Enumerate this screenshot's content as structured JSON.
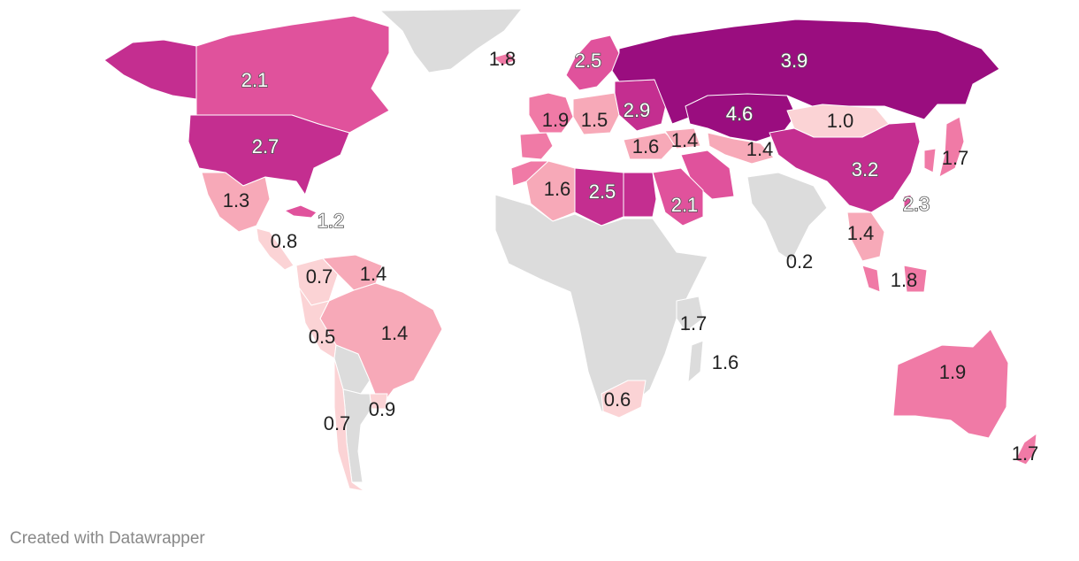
{
  "credit": "Created with Datawrapper",
  "colors": {
    "no_data": "#dcdcdc",
    "scale": [
      "#fbd3d5",
      "#f7a9b8",
      "#f07aa6",
      "#e0529c",
      "#c42e90",
      "#9a0d7f"
    ]
  },
  "regions": [
    {
      "name": "Canada",
      "value": "2.1",
      "level": 3
    },
    {
      "name": "USA",
      "value": "2.7",
      "level": 4
    },
    {
      "name": "Alaska",
      "value": "",
      "level": 4
    },
    {
      "name": "Greenland",
      "value": "",
      "level": -1
    },
    {
      "name": "Mexico",
      "value": "1.3",
      "level": 1
    },
    {
      "name": "Central America",
      "value": "0.8",
      "level": 0
    },
    {
      "name": "Cuba",
      "value": "1.2",
      "level": 3
    },
    {
      "name": "Colombia",
      "value": "0.7",
      "level": 0
    },
    {
      "name": "Venezuela",
      "value": "1.4",
      "level": 1
    },
    {
      "name": "Brazil",
      "value": "1.4",
      "level": 1
    },
    {
      "name": "Peru",
      "value": "0.5",
      "level": 0
    },
    {
      "name": "Bolivia/Paraguay",
      "value": "",
      "level": -1
    },
    {
      "name": "Uruguay",
      "value": "0.9",
      "level": 0
    },
    {
      "name": "Argentina",
      "value": "",
      "level": -1
    },
    {
      "name": "Chile",
      "value": "0.7",
      "level": 0
    },
    {
      "name": "Iceland",
      "value": "1.8",
      "level": 2
    },
    {
      "name": "Scandinavia",
      "value": "2.5",
      "level": 3
    },
    {
      "name": "Western Europe",
      "value": "1.9",
      "level": 2
    },
    {
      "name": "Iberia",
      "value": "",
      "level": 2
    },
    {
      "name": "Central Europe",
      "value": "1.5",
      "level": 1
    },
    {
      "name": "Eastern Europe",
      "value": "2.9",
      "level": 4
    },
    {
      "name": "Turkey",
      "value": "1.6",
      "level": 1
    },
    {
      "name": "Caucasus",
      "value": "1.4",
      "level": 1
    },
    {
      "name": "Russia",
      "value": "3.9",
      "level": 5
    },
    {
      "name": "Kazakhstan",
      "value": "4.6",
      "level": 5
    },
    {
      "name": "Central Asia",
      "value": "1.4",
      "level": 1
    },
    {
      "name": "Mongolia",
      "value": "1.0",
      "level": 0
    },
    {
      "name": "China",
      "value": "3.2",
      "level": 4
    },
    {
      "name": "Korea/Japan",
      "value": "1.7",
      "level": 2
    },
    {
      "name": "Taiwan",
      "value": "2.3",
      "level": 3
    },
    {
      "name": "Vietnam/Thailand",
      "value": "1.4",
      "level": 1
    },
    {
      "name": "Malaysia/Indonesia",
      "value": "1.8",
      "level": 2
    },
    {
      "name": "Iran",
      "value": "",
      "level": 3
    },
    {
      "name": "Saudi Arabia",
      "value": "2.1",
      "level": 3
    },
    {
      "name": "Egypt",
      "value": "",
      "level": 4
    },
    {
      "name": "Libya",
      "value": "2.5",
      "level": 4
    },
    {
      "name": "Algeria",
      "value": "1.6",
      "level": 1
    },
    {
      "name": "Morocco",
      "value": "",
      "level": 2
    },
    {
      "name": "Africa (rest)",
      "value": "",
      "level": -1
    },
    {
      "name": "Kenya region",
      "value": "1.7",
      "level": -1
    },
    {
      "name": "Madagascar",
      "value": "1.6",
      "level": -1
    },
    {
      "name": "South Africa",
      "value": "0.6",
      "level": 0
    },
    {
      "name": "India",
      "value": "0.2",
      "level": -1
    },
    {
      "name": "Australia",
      "value": "1.9",
      "level": 2
    },
    {
      "name": "New Zealand",
      "value": "1.7",
      "level": 2
    }
  ]
}
